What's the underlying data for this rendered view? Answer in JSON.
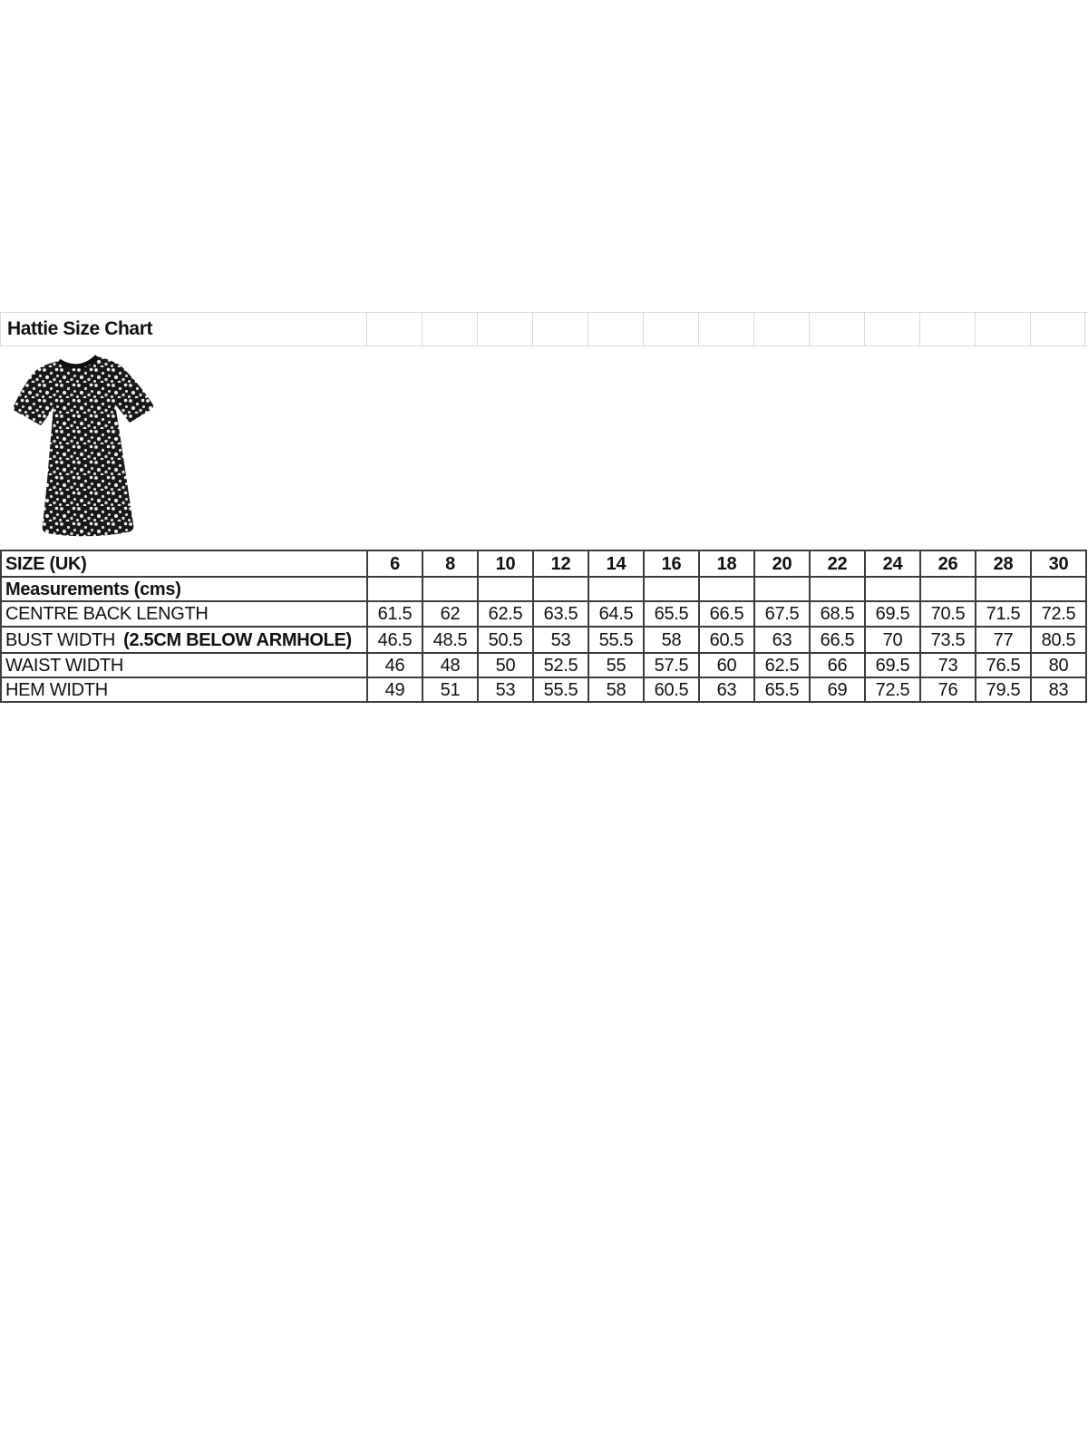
{
  "title": "Hattie Size Chart",
  "product_image": {
    "name": "polka-dot-top-photo",
    "description": "Black short-sleeve top with white polka dots"
  },
  "size_chart": {
    "header_label": "SIZE (UK)",
    "sizes": [
      "6",
      "8",
      "10",
      "12",
      "14",
      "16",
      "18",
      "20",
      "22",
      "24",
      "26",
      "28",
      "30"
    ],
    "subheader_label": "Measurements (cms)",
    "rows": [
      {
        "label": "CENTRE BACK LENGTH",
        "label_bold": "",
        "values": [
          "61.5",
          "62",
          "62.5",
          "63.5",
          "64.5",
          "65.5",
          "66.5",
          "67.5",
          "68.5",
          "69.5",
          "70.5",
          "71.5",
          "72.5"
        ]
      },
      {
        "label": "BUST WIDTH",
        "label_bold": "(2.5CM BELOW ARMHOLE)",
        "values": [
          "46.5",
          "48.5",
          "50.5",
          "53",
          "55.5",
          "58",
          "60.5",
          "63",
          "66.5",
          "70",
          "73.5",
          "77",
          "80.5"
        ]
      },
      {
        "label": "WAIST WIDTH",
        "label_bold": "",
        "values": [
          "46",
          "48",
          "50",
          "52.5",
          "55",
          "57.5",
          "60",
          "62.5",
          "66",
          "69.5",
          "73",
          "76.5",
          "80"
        ]
      },
      {
        "label": "HEM WIDTH",
        "label_bold": "",
        "values": [
          "49",
          "51",
          "53",
          "55.5",
          "58",
          "60.5",
          "63",
          "65.5",
          "69",
          "72.5",
          "76",
          "79.5",
          "83"
        ]
      }
    ]
  },
  "colors": {
    "table_border": "#3d3d3d",
    "gridline": "#d9d9d9",
    "text": "#111111",
    "background": "#ffffff",
    "shirt_fabric": "#181818",
    "shirt_dots": "#ececec"
  }
}
